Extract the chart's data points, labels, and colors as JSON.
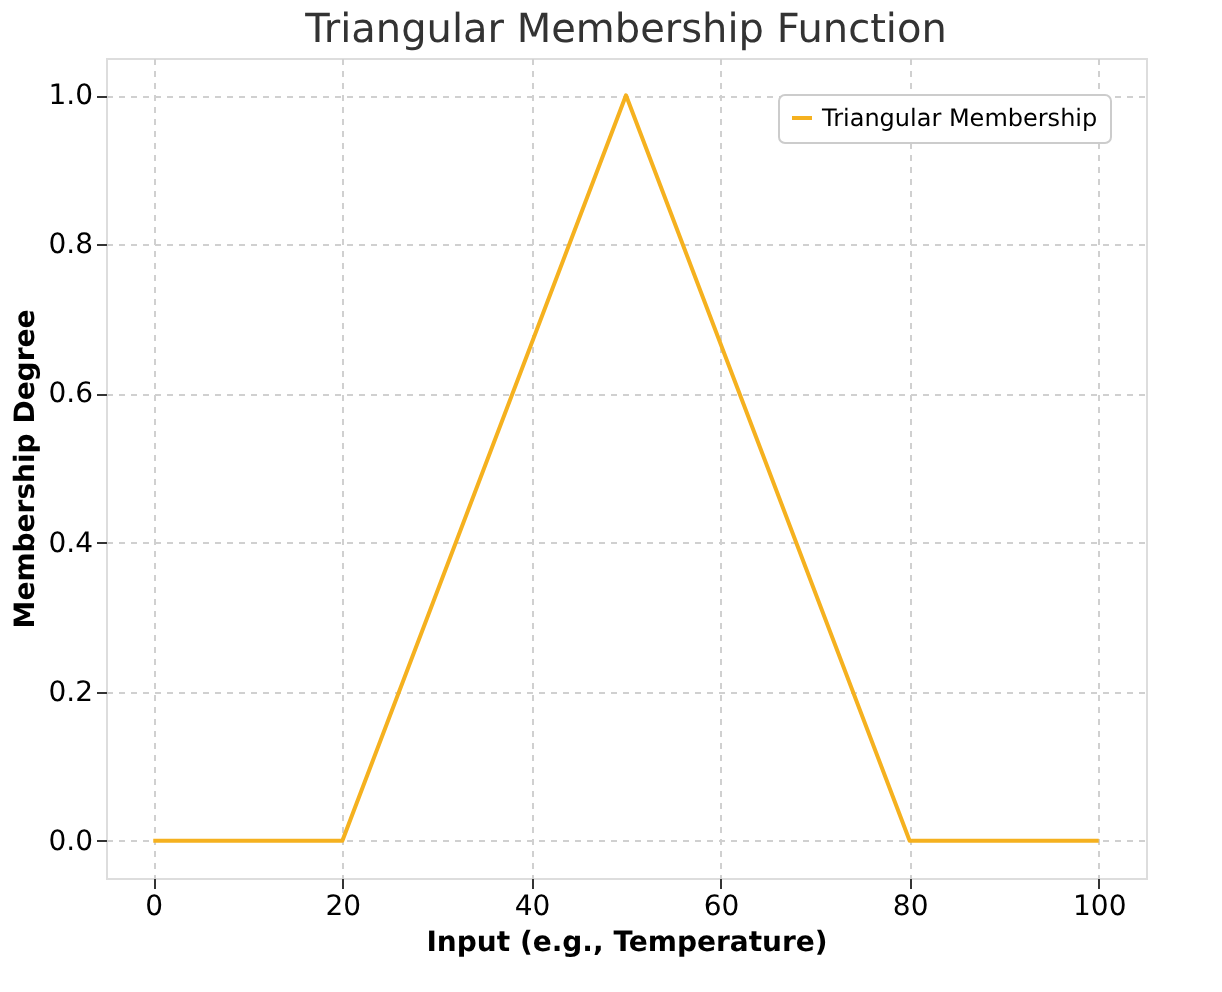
{
  "chart_data": {
    "type": "line",
    "title": "Triangular Membership Function",
    "xlabel": "Input (e.g., Temperature)",
    "ylabel": "Membership Degree",
    "x": [
      0,
      20,
      50,
      80,
      100
    ],
    "series": [
      {
        "name": "Triangular Membership",
        "color": "#f5b11f",
        "values": [
          0,
          0,
          1,
          0,
          0
        ]
      }
    ],
    "xlim": [
      -5,
      105
    ],
    "xticks": [
      0,
      20,
      40,
      60,
      80,
      100
    ],
    "ylim": [
      -0.05,
      1.05
    ],
    "yticks": [
      {
        "value": 0,
        "label": "0.0"
      },
      {
        "value": 0.2,
        "label": "0.2"
      },
      {
        "value": 0.4,
        "label": "0.4"
      },
      {
        "value": 0.6,
        "label": "0.6"
      },
      {
        "value": 0.8,
        "label": "0.8"
      },
      {
        "value": 1,
        "label": "1.0"
      }
    ],
    "grid": true,
    "legend": "top right",
    "line_style": "solid",
    "marker": "none"
  }
}
